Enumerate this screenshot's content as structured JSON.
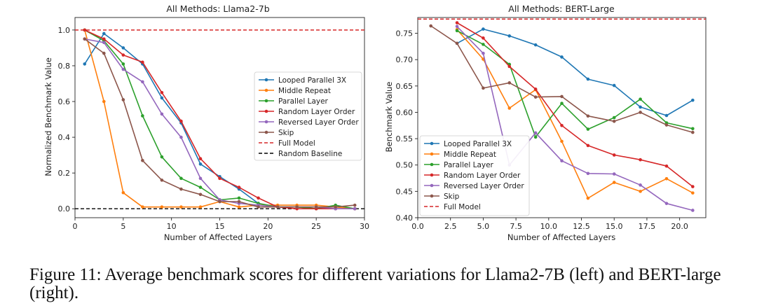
{
  "caption": "Figure 11: Average benchmark scores for different variations for Llama2-7B (left) and BERT-large (right).",
  "chart_data": [
    {
      "type": "line",
      "title": "All Methods: Llama2-7b",
      "xlabel": "Number of Affected Layers",
      "ylabel": "Normalized Benchmark Value",
      "xlim": [
        0,
        30
      ],
      "ylim": [
        -0.05,
        1.07
      ],
      "xticks": [
        0,
        5,
        10,
        15,
        20,
        25,
        30
      ],
      "yticks": [
        0.0,
        0.2,
        0.4,
        0.6,
        0.8,
        1.0
      ],
      "ytick_decimals": 1,
      "grid": false,
      "legend_position": "center-right",
      "series": [
        {
          "name": "Looped Parallel 3X",
          "color": "#1f77b4",
          "x": [
            1,
            3,
            5,
            7,
            9,
            11,
            13,
            15,
            17,
            19,
            21,
            23,
            25,
            27,
            29
          ],
          "y": [
            0.81,
            0.98,
            0.9,
            0.81,
            0.62,
            0.48,
            0.25,
            0.18,
            0.11,
            0.03,
            0.01,
            0.01,
            0.0,
            0.0,
            0.0
          ]
        },
        {
          "name": "Middle Repeat",
          "color": "#ff7f0e",
          "x": [
            1,
            3,
            5,
            7,
            9,
            11,
            13,
            15,
            17,
            19,
            21,
            23,
            25,
            27,
            29
          ],
          "y": [
            1.0,
            0.6,
            0.09,
            0.01,
            0.01,
            0.01,
            0.01,
            0.04,
            0.01,
            0.02,
            0.02,
            0.02,
            0.02,
            0.01,
            0.0
          ]
        },
        {
          "name": "Parallel Layer",
          "color": "#2ca02c",
          "x": [
            1,
            3,
            5,
            7,
            9,
            11,
            13,
            15,
            17,
            19,
            21,
            23,
            25,
            27,
            29
          ],
          "y": [
            1.0,
            0.94,
            0.81,
            0.52,
            0.29,
            0.17,
            0.12,
            0.05,
            0.06,
            0.03,
            0.01,
            0.01,
            0.0,
            0.02,
            0.0
          ]
        },
        {
          "name": "Random Layer Order",
          "color": "#d62728",
          "x": [
            1,
            3,
            5,
            7,
            9,
            11,
            13,
            15,
            17,
            19,
            21,
            23,
            25,
            27,
            29
          ],
          "y": [
            1.0,
            0.95,
            0.86,
            0.82,
            0.65,
            0.49,
            0.28,
            0.17,
            0.12,
            0.06,
            0.01,
            0.0,
            0.0,
            0.0,
            0.0
          ]
        },
        {
          "name": "Reversed Layer Order",
          "color": "#9467bd",
          "x": [
            1,
            3,
            5,
            7,
            9,
            11,
            13,
            15,
            17,
            19,
            21,
            23,
            25,
            27,
            29
          ],
          "y": [
            0.95,
            0.93,
            0.78,
            0.71,
            0.53,
            0.4,
            0.17,
            0.05,
            0.03,
            0.02,
            0.01,
            0.01,
            0.01,
            0.0,
            0.0
          ]
        },
        {
          "name": "Skip",
          "color": "#8c564b",
          "x": [
            1,
            3,
            5,
            7,
            9,
            11,
            13,
            15,
            17,
            19,
            21,
            23,
            25,
            27,
            29
          ],
          "y": [
            0.95,
            0.87,
            0.61,
            0.27,
            0.16,
            0.11,
            0.08,
            0.04,
            0.04,
            0.01,
            0.01,
            0.01,
            0.01,
            0.01,
            0.02
          ]
        }
      ],
      "reference_lines": [
        {
          "name": "Full Model",
          "color": "#d62728",
          "y": 1.0
        },
        {
          "name": "Random Baseline",
          "color": "#000000",
          "y": 0.0
        }
      ]
    },
    {
      "type": "line",
      "title": "All Methods: BERT-Large",
      "xlabel": "Number of Affected Layers",
      "ylabel": "Benchmark Value",
      "xlim": [
        0,
        22
      ],
      "ylim": [
        0.4,
        0.78
      ],
      "xticks": [
        0.0,
        2.5,
        5.0,
        7.5,
        10.0,
        12.5,
        15.0,
        17.5,
        20.0
      ],
      "xtick_decimals": 1,
      "yticks": [
        0.4,
        0.45,
        0.5,
        0.55,
        0.6,
        0.65,
        0.7,
        0.75
      ],
      "ytick_decimals": 2,
      "grid": false,
      "legend_position": "lower-left",
      "series": [
        {
          "name": "Looped Parallel 3X",
          "color": "#1f77b4",
          "x": [
            3,
            5,
            7,
            9,
            11,
            13,
            15,
            17,
            19,
            21
          ],
          "y": [
            0.731,
            0.758,
            0.745,
            0.728,
            0.705,
            0.663,
            0.651,
            0.61,
            0.594,
            0.623
          ]
        },
        {
          "name": "Middle Repeat",
          "color": "#ff7f0e",
          "x": [
            3,
            5,
            7,
            9,
            11,
            13,
            15,
            17,
            19,
            21
          ],
          "y": [
            0.757,
            0.701,
            0.608,
            0.643,
            0.545,
            0.437,
            0.467,
            0.45,
            0.474,
            0.447
          ]
        },
        {
          "name": "Parallel Layer",
          "color": "#2ca02c",
          "x": [
            3,
            5,
            7,
            9,
            11,
            13,
            15,
            17,
            19,
            21
          ],
          "y": [
            0.755,
            0.729,
            0.691,
            0.553,
            0.617,
            0.568,
            0.59,
            0.625,
            0.58,
            0.569
          ]
        },
        {
          "name": "Random Layer Order",
          "color": "#d62728",
          "x": [
            3,
            5,
            7,
            9,
            11,
            13,
            15,
            17,
            19,
            21
          ],
          "y": [
            0.77,
            0.741,
            0.687,
            0.644,
            0.575,
            0.537,
            0.519,
            0.51,
            0.498,
            0.459
          ]
        },
        {
          "name": "Reversed Layer Order",
          "color": "#9467bd",
          "x": [
            3,
            5,
            7,
            9,
            11,
            13,
            15,
            17,
            19,
            21
          ],
          "y": [
            0.763,
            0.712,
            0.5,
            0.561,
            0.508,
            0.484,
            0.483,
            0.462,
            0.427,
            0.414
          ]
        },
        {
          "name": "Skip",
          "color": "#8c564b",
          "x": [
            1,
            3,
            5,
            7,
            9,
            11,
            13,
            15,
            17,
            19,
            21
          ],
          "y": [
            0.764,
            0.731,
            0.646,
            0.656,
            0.629,
            0.63,
            0.593,
            0.583,
            0.6,
            0.576,
            0.562
          ]
        }
      ],
      "reference_lines": [
        {
          "name": "Full Model",
          "color": "#d62728",
          "y": 0.777
        }
      ]
    }
  ]
}
